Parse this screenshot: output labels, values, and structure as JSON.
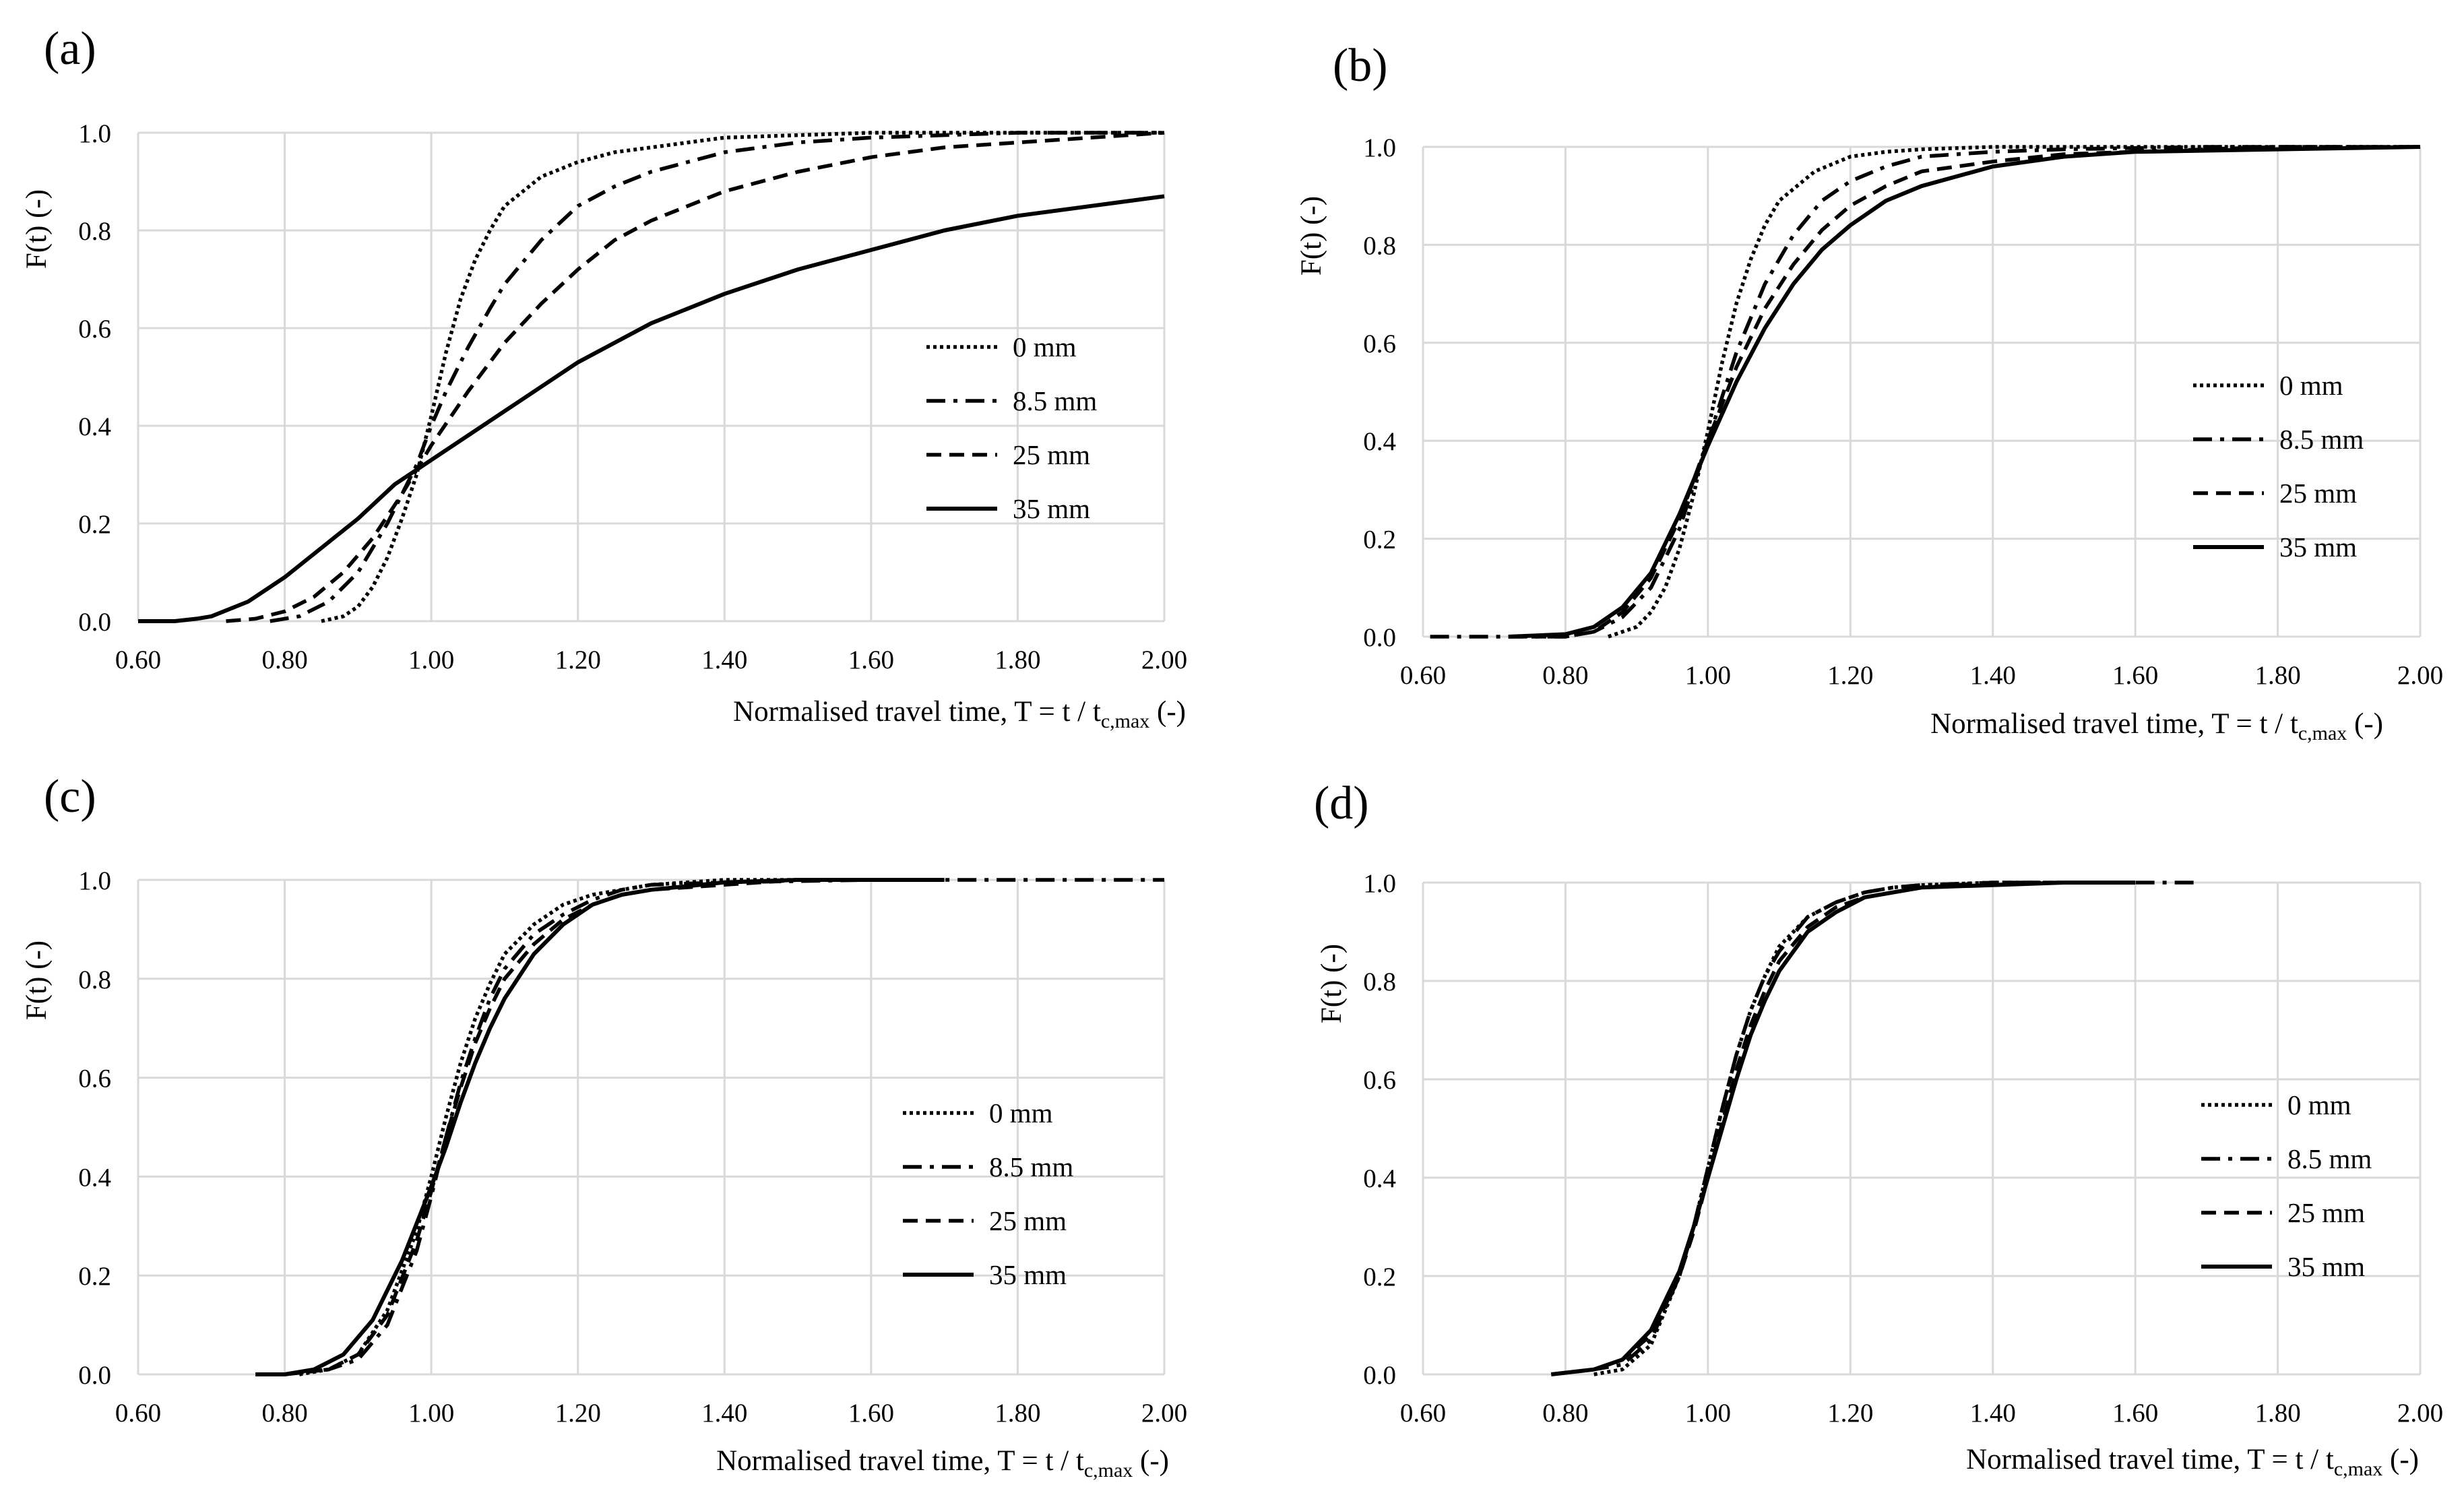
{
  "chart_data": [
    {
      "type": "line",
      "panel_label": "(a)",
      "ylabel": "F(t) (-)",
      "xlabel_main": "Normalised travel time, T = t / t",
      "xlabel_sub": "c,max",
      "xlabel_end": " (-)",
      "xlim": [
        0.6,
        2.0
      ],
      "ylim": [
        0,
        1.0
      ],
      "x_ticks": [
        "0.60",
        "0.80",
        "1.00",
        "1.20",
        "1.40",
        "1.60",
        "1.80",
        "2.00"
      ],
      "y_ticks": [
        "0.0",
        "0.2",
        "0.4",
        "0.6",
        "0.8",
        "1.0"
      ],
      "legend": [
        "0 mm",
        "8.5 mm",
        "25 mm",
        "35 mm"
      ],
      "series": [
        {
          "name": "0 mm",
          "style": "dotted",
          "x": [
            0.85,
            0.88,
            0.9,
            0.92,
            0.94,
            0.96,
            0.98,
            1.0,
            1.02,
            1.04,
            1.06,
            1.08,
            1.1,
            1.15,
            1.2,
            1.25,
            1.3,
            1.35,
            1.4,
            1.5,
            1.6,
            1.8,
            2.0
          ],
          "y": [
            0.0,
            0.01,
            0.03,
            0.07,
            0.13,
            0.21,
            0.3,
            0.42,
            0.55,
            0.66,
            0.74,
            0.8,
            0.85,
            0.91,
            0.94,
            0.96,
            0.97,
            0.98,
            0.99,
            0.995,
            1.0,
            1.0,
            1.0
          ]
        },
        {
          "name": "8.5 mm",
          "style": "dashdot",
          "x": [
            0.78,
            0.82,
            0.86,
            0.9,
            0.94,
            0.98,
            1.0,
            1.02,
            1.05,
            1.08,
            1.1,
            1.15,
            1.2,
            1.25,
            1.3,
            1.4,
            1.5,
            1.6,
            1.8,
            2.0
          ],
          "y": [
            0.0,
            0.01,
            0.04,
            0.1,
            0.2,
            0.32,
            0.4,
            0.47,
            0.56,
            0.64,
            0.69,
            0.78,
            0.85,
            0.89,
            0.92,
            0.96,
            0.98,
            0.99,
            1.0,
            1.0
          ]
        },
        {
          "name": "25 mm",
          "style": "dashed",
          "x": [
            0.72,
            0.76,
            0.8,
            0.84,
            0.88,
            0.92,
            0.96,
            1.0,
            1.05,
            1.1,
            1.15,
            1.2,
            1.25,
            1.3,
            1.4,
            1.5,
            1.6,
            1.7,
            1.8,
            1.9,
            2.0
          ],
          "y": [
            0.0,
            0.005,
            0.02,
            0.05,
            0.1,
            0.17,
            0.26,
            0.36,
            0.47,
            0.57,
            0.65,
            0.72,
            0.78,
            0.82,
            0.88,
            0.92,
            0.95,
            0.97,
            0.98,
            0.99,
            1.0
          ]
        },
        {
          "name": "35 mm",
          "style": "solid",
          "x": [
            0.6,
            0.65,
            0.68,
            0.7,
            0.75,
            0.8,
            0.85,
            0.9,
            0.95,
            1.0,
            1.05,
            1.1,
            1.2,
            1.3,
            1.4,
            1.5,
            1.6,
            1.7,
            1.8,
            1.9,
            2.0
          ],
          "y": [
            0.0,
            0.0,
            0.005,
            0.01,
            0.04,
            0.09,
            0.15,
            0.21,
            0.28,
            0.33,
            0.38,
            0.43,
            0.53,
            0.61,
            0.67,
            0.72,
            0.76,
            0.8,
            0.83,
            0.85,
            0.87
          ]
        }
      ]
    },
    {
      "type": "line",
      "panel_label": "(b)",
      "ylabel": "F(t) (-)",
      "xlabel_main": "Normalised travel time, T = t / t",
      "xlabel_sub": "c,max",
      "xlabel_end": " (-)",
      "xlim": [
        0.6,
        2.0
      ],
      "ylim": [
        0,
        1.0
      ],
      "x_ticks": [
        "0.60",
        "0.80",
        "1.00",
        "1.20",
        "1.40",
        "1.60",
        "1.80",
        "2.00"
      ],
      "y_ticks": [
        "0.0",
        "0.2",
        "0.4",
        "0.6",
        "0.8",
        "1.0"
      ],
      "legend": [
        "0 mm",
        "8.5 mm",
        "25 mm",
        "35 mm"
      ],
      "series": [
        {
          "name": "0 mm",
          "style": "dotted",
          "x": [
            0.86,
            0.9,
            0.92,
            0.94,
            0.96,
            0.98,
            1.0,
            1.02,
            1.04,
            1.06,
            1.08,
            1.1,
            1.15,
            1.2,
            1.25,
            1.3,
            1.4,
            1.5,
            1.7,
            2.0
          ],
          "y": [
            0.0,
            0.02,
            0.05,
            0.1,
            0.18,
            0.29,
            0.42,
            0.56,
            0.68,
            0.77,
            0.84,
            0.89,
            0.95,
            0.98,
            0.99,
            0.995,
            1.0,
            1.0,
            1.0,
            1.0
          ]
        },
        {
          "name": "8.5 mm",
          "style": "dashdot",
          "x": [
            0.61,
            0.7,
            0.8,
            0.84,
            0.88,
            0.92,
            0.96,
            1.0,
            1.04,
            1.08,
            1.12,
            1.16,
            1.2,
            1.25,
            1.3,
            1.4,
            1.5,
            1.7,
            2.0
          ],
          "y": [
            0.0,
            0.0,
            0.0,
            0.01,
            0.04,
            0.1,
            0.22,
            0.4,
            0.58,
            0.72,
            0.82,
            0.89,
            0.93,
            0.96,
            0.98,
            0.99,
            0.995,
            1.0,
            1.0
          ]
        },
        {
          "name": "25 mm",
          "style": "dashed",
          "x": [
            0.72,
            0.8,
            0.84,
            0.88,
            0.92,
            0.96,
            1.0,
            1.04,
            1.08,
            1.12,
            1.16,
            1.2,
            1.25,
            1.3,
            1.4,
            1.5,
            1.6,
            1.8,
            2.0
          ],
          "y": [
            0.0,
            0.0,
            0.01,
            0.05,
            0.12,
            0.24,
            0.4,
            0.55,
            0.67,
            0.76,
            0.83,
            0.88,
            0.92,
            0.95,
            0.97,
            0.985,
            0.99,
            1.0,
            1.0
          ]
        },
        {
          "name": "35 mm",
          "style": "solid",
          "x": [
            0.72,
            0.8,
            0.84,
            0.88,
            0.92,
            0.96,
            1.0,
            1.04,
            1.08,
            1.12,
            1.16,
            1.2,
            1.25,
            1.3,
            1.4,
            1.5,
            1.6,
            1.8,
            2.0
          ],
          "y": [
            0.0,
            0.005,
            0.02,
            0.06,
            0.13,
            0.25,
            0.39,
            0.52,
            0.63,
            0.72,
            0.79,
            0.84,
            0.89,
            0.92,
            0.96,
            0.98,
            0.99,
            0.995,
            1.0
          ]
        }
      ]
    },
    {
      "type": "line",
      "panel_label": "(c)",
      "ylabel": "F(t) (-)",
      "xlabel_main": "Normalised travel time, T = t / t",
      "xlabel_sub": "c,max",
      "xlabel_end": " (-)",
      "xlim": [
        0.6,
        2.0
      ],
      "ylim": [
        0,
        1.0
      ],
      "x_ticks": [
        "0.60",
        "0.80",
        "1.00",
        "1.20",
        "1.40",
        "1.60",
        "1.80",
        "2.00"
      ],
      "y_ticks": [
        "0.0",
        "0.2",
        "0.4",
        "0.6",
        "0.8",
        "1.0"
      ],
      "legend": [
        "0 mm",
        "8.5 mm",
        "25 mm",
        "35 mm"
      ],
      "series": [
        {
          "name": "0 mm",
          "style": "dotted",
          "x": [
            0.82,
            0.86,
            0.9,
            0.94,
            0.98,
            1.0,
            1.02,
            1.04,
            1.06,
            1.08,
            1.1,
            1.14,
            1.18,
            1.22,
            1.26,
            1.3,
            1.4,
            1.5,
            1.6,
            1.7
          ],
          "y": [
            0.0,
            0.01,
            0.04,
            0.13,
            0.29,
            0.4,
            0.52,
            0.63,
            0.72,
            0.79,
            0.85,
            0.91,
            0.95,
            0.97,
            0.98,
            0.99,
            1.0,
            1.0,
            1.0,
            1.0
          ]
        },
        {
          "name": "8.5 mm",
          "style": "dashdot",
          "x": [
            0.8,
            0.86,
            0.9,
            0.94,
            0.98,
            1.0,
            1.02,
            1.04,
            1.06,
            1.08,
            1.1,
            1.14,
            1.18,
            1.22,
            1.26,
            1.3,
            1.4,
            1.6,
            1.8,
            2.0
          ],
          "y": [
            0.0,
            0.01,
            0.03,
            0.1,
            0.25,
            0.36,
            0.48,
            0.59,
            0.68,
            0.76,
            0.82,
            0.89,
            0.93,
            0.96,
            0.98,
            0.99,
            0.995,
            1.0,
            1.0,
            1.0
          ]
        },
        {
          "name": "25 mm",
          "style": "dashed",
          "x": [
            0.8,
            0.86,
            0.9,
            0.94,
            0.98,
            1.0,
            1.02,
            1.04,
            1.06,
            1.08,
            1.1,
            1.14,
            1.18,
            1.22,
            1.26,
            1.3,
            1.4,
            1.5,
            1.6
          ],
          "y": [
            0.0,
            0.01,
            0.04,
            0.12,
            0.27,
            0.37,
            0.48,
            0.58,
            0.67,
            0.74,
            0.8,
            0.87,
            0.92,
            0.95,
            0.97,
            0.98,
            0.99,
            1.0,
            1.0
          ]
        },
        {
          "name": "35 mm",
          "style": "solid",
          "x": [
            0.76,
            0.8,
            0.84,
            0.88,
            0.92,
            0.96,
            1.0,
            1.02,
            1.04,
            1.06,
            1.08,
            1.1,
            1.14,
            1.18,
            1.22,
            1.26,
            1.3,
            1.4,
            1.5,
            1.6,
            1.7
          ],
          "y": [
            0.0,
            0.0,
            0.01,
            0.04,
            0.11,
            0.23,
            0.38,
            0.46,
            0.55,
            0.63,
            0.7,
            0.76,
            0.85,
            0.91,
            0.95,
            0.97,
            0.98,
            0.995,
            1.0,
            1.0,
            1.0
          ]
        }
      ]
    },
    {
      "type": "line",
      "panel_label": "(d)",
      "ylabel": "F(t) (-)",
      "xlabel_main": "Normalised travel time, T = t / t",
      "xlabel_sub": "c,max",
      "xlabel_end": " (-)",
      "xlim": [
        0.6,
        2.0
      ],
      "ylim": [
        0,
        1.0
      ],
      "x_ticks": [
        "0.60",
        "0.80",
        "1.00",
        "1.20",
        "1.40",
        "1.60",
        "1.80",
        "2.00"
      ],
      "y_ticks": [
        "0.0",
        "0.2",
        "0.4",
        "0.6",
        "0.8",
        "1.0"
      ],
      "legend": [
        "0 mm",
        "8.5 mm",
        "25 mm",
        "35 mm"
      ],
      "series": [
        {
          "name": "0 mm",
          "style": "dotted",
          "x": [
            0.84,
            0.88,
            0.92,
            0.96,
            0.98,
            1.0,
            1.02,
            1.04,
            1.06,
            1.08,
            1.1,
            1.14,
            1.18,
            1.22,
            1.26,
            1.3,
            1.4,
            1.5,
            1.6
          ],
          "y": [
            0.0,
            0.01,
            0.06,
            0.2,
            0.3,
            0.42,
            0.54,
            0.65,
            0.74,
            0.81,
            0.87,
            0.93,
            0.96,
            0.98,
            0.99,
            0.995,
            1.0,
            1.0,
            1.0
          ]
        },
        {
          "name": "8.5 mm",
          "style": "dashdot",
          "x": [
            0.78,
            0.84,
            0.88,
            0.92,
            0.96,
            0.98,
            1.0,
            1.02,
            1.04,
            1.06,
            1.08,
            1.1,
            1.14,
            1.18,
            1.22,
            1.26,
            1.3,
            1.4,
            1.5,
            1.6,
            1.69
          ],
          "y": [
            0.0,
            0.01,
            0.02,
            0.07,
            0.2,
            0.3,
            0.42,
            0.54,
            0.65,
            0.74,
            0.81,
            0.86,
            0.93,
            0.96,
            0.98,
            0.99,
            0.995,
            1.0,
            1.0,
            1.0,
            1.0
          ]
        },
        {
          "name": "25 mm",
          "style": "dashed",
          "x": [
            0.78,
            0.84,
            0.88,
            0.92,
            0.96,
            0.98,
            1.0,
            1.02,
            1.04,
            1.06,
            1.08,
            1.1,
            1.14,
            1.18,
            1.22,
            1.26,
            1.3,
            1.4,
            1.5
          ],
          "y": [
            0.0,
            0.01,
            0.03,
            0.08,
            0.2,
            0.29,
            0.4,
            0.51,
            0.62,
            0.71,
            0.78,
            0.84,
            0.91,
            0.95,
            0.97,
            0.98,
            0.99,
            1.0,
            1.0
          ]
        },
        {
          "name": "35 mm",
          "style": "solid",
          "x": [
            0.78,
            0.84,
            0.88,
            0.92,
            0.96,
            0.98,
            1.0,
            1.02,
            1.04,
            1.06,
            1.08,
            1.1,
            1.14,
            1.18,
            1.22,
            1.26,
            1.3,
            1.4,
            1.5,
            1.6
          ],
          "y": [
            0.0,
            0.01,
            0.03,
            0.09,
            0.21,
            0.3,
            0.4,
            0.5,
            0.6,
            0.69,
            0.76,
            0.82,
            0.9,
            0.94,
            0.97,
            0.98,
            0.99,
            0.995,
            1.0,
            1.0
          ]
        }
      ]
    }
  ]
}
